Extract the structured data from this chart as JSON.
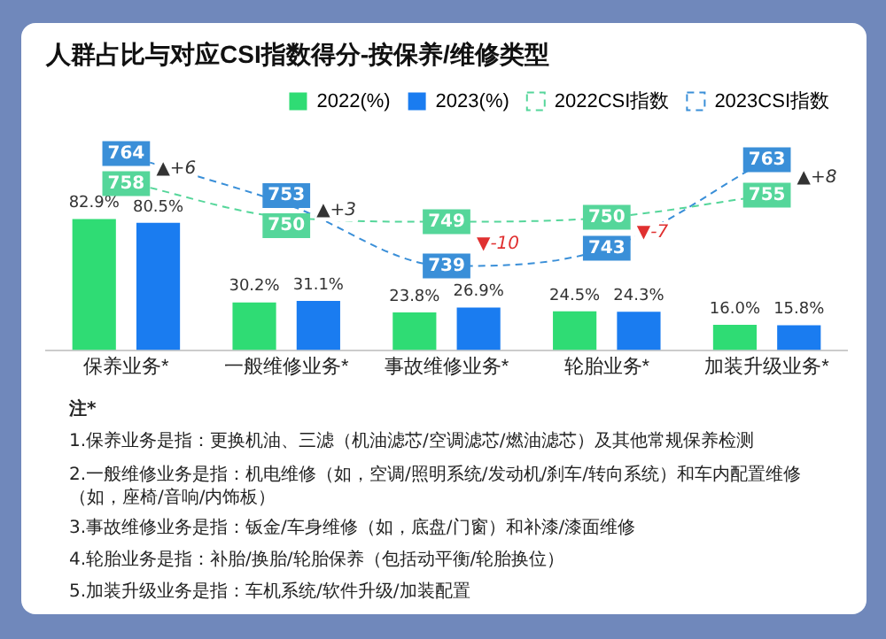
{
  "chart_data": {
    "type": "bar",
    "title": "人群占比与对应CSI指数得分-按保养/维修类型",
    "categories": [
      "保养业务*",
      "一般维修业务*",
      "事故维修业务*",
      "轮胎业务*",
      "加装升级业务*"
    ],
    "series": [
      {
        "name": "2022(%)",
        "color": "#2fdc74",
        "values": [
          82.9,
          30.2,
          23.8,
          24.5,
          16.0
        ],
        "value_labels": [
          "82.9%",
          "30.2%",
          "23.8%",
          "24.5%",
          "16.0%"
        ]
      },
      {
        "name": "2023(%)",
        "color": "#1a7cf0",
        "values": [
          80.5,
          31.1,
          26.9,
          24.3,
          15.8
        ],
        "value_labels": [
          "80.5%",
          "31.1%",
          "26.9%",
          "24.3%",
          "15.8%"
        ]
      },
      {
        "name": "2022CSI指数",
        "type": "line",
        "axis": "y2",
        "line_style": "dashed",
        "color": "#55d69a",
        "values": [
          758,
          750,
          749,
          750,
          755
        ],
        "value_labels": [
          "758",
          "750",
          "749",
          "750",
          "755"
        ]
      },
      {
        "name": "2023CSI指数",
        "type": "line",
        "axis": "y2",
        "line_style": "dashed",
        "color": "#3a8fd8",
        "values": [
          764,
          753,
          739,
          743,
          763
        ],
        "value_labels": [
          "764",
          "753",
          "739",
          "743",
          "763"
        ]
      }
    ],
    "tick_labels": "x",
    "grid": false,
    "legend": "top right",
    "annotations": [
      "▲+6",
      "▲+3",
      "▼-10",
      "▼-7",
      "▲+8",
      "注*",
      "1.保养业务是指：更换机油、三滤（机油滤芯/空调滤芯/燃油滤芯）及其他常规保养检测",
      "2.一般维修业务是指：机电维修（如，空调/照明系统/发动机/刹车/转向系统）和车内配置维修（如，座椅/音响/内饰板）",
      "3.事故维修业务是指：钣金/车身维修（如，底盘/门窗）和补漆/漆面维修",
      "4.轮胎业务是指：补胎/换胎/轮胎保养（包括动平衡/轮胎换位）",
      "5.加装升级业务是指：车机系统/软件升级/加装配置"
    ]
  }
}
